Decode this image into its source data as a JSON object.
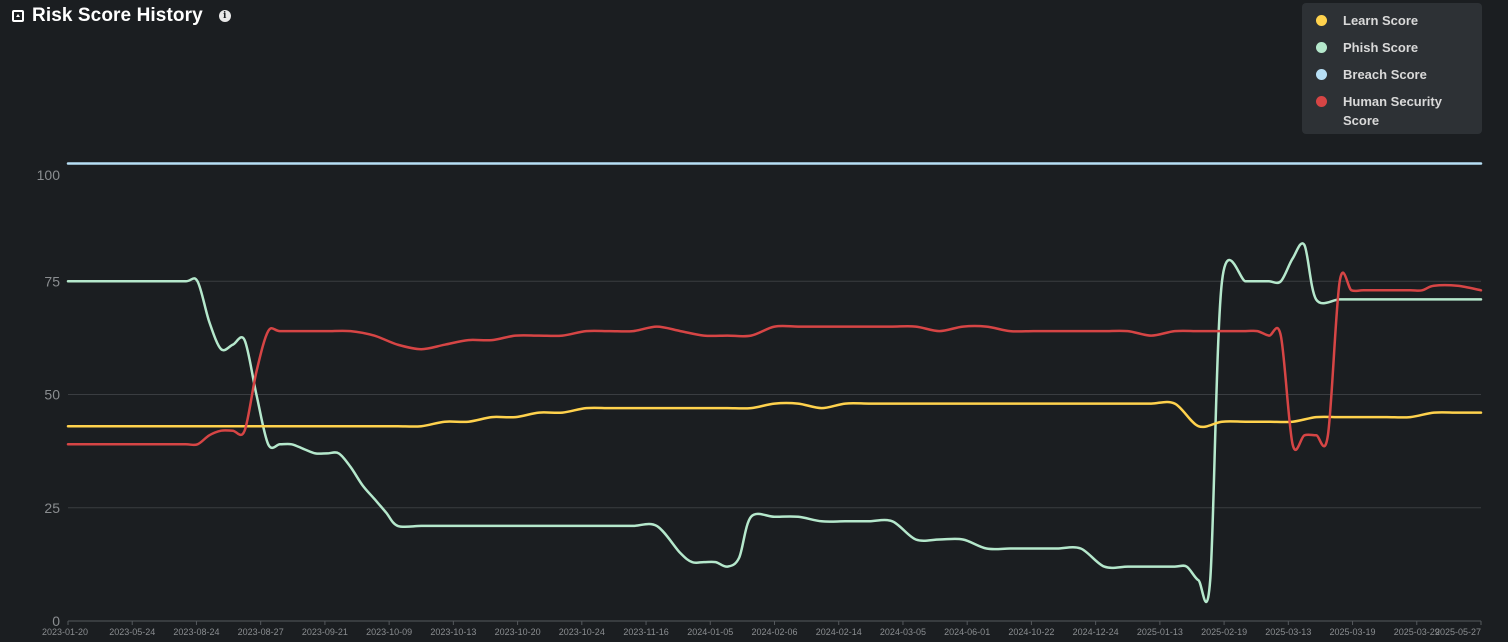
{
  "header": {
    "title": "Risk Score History"
  },
  "chart_data": {
    "type": "line",
    "title": "Risk Score History",
    "ylim": [
      0,
      100
    ],
    "yticks": [
      0,
      25,
      50,
      75,
      100
    ],
    "grid": true,
    "legend_position": "top-right",
    "categories": [
      "2023-01-20",
      "2023-05-24",
      "2023-08-24",
      "2023-08-27",
      "2023-09-21",
      "2023-10-09",
      "2023-10-13",
      "2023-10-20",
      "2023-10-24",
      "2023-11-16",
      "2024-01-05",
      "2024-02-06",
      "2024-02-14",
      "2024-03-05",
      "2024-06-01",
      "2024-10-22",
      "2024-12-24",
      "2025-01-13",
      "2025-02-19",
      "2025-03-13",
      "2025-03-19",
      "2025-03-29",
      "2025-05-27"
    ],
    "series": [
      {
        "name": "Learn Score",
        "color": "#ffd24d",
        "points": [
          [
            0,
            43
          ],
          [
            5,
            43
          ],
          [
            10,
            43
          ],
          [
            15,
            43
          ],
          [
            20,
            43
          ],
          [
            30,
            43
          ],
          [
            40,
            43
          ],
          [
            50,
            43
          ],
          [
            60,
            43
          ],
          [
            70,
            43
          ],
          [
            80,
            43
          ],
          [
            90,
            43
          ],
          [
            100,
            43
          ],
          [
            110,
            43
          ],
          [
            120,
            43
          ],
          [
            130,
            43
          ],
          [
            140,
            43
          ],
          [
            150,
            43
          ],
          [
            160,
            44
          ],
          [
            170,
            44
          ],
          [
            180,
            45
          ],
          [
            190,
            45
          ],
          [
            200,
            46
          ],
          [
            210,
            46
          ],
          [
            220,
            47
          ],
          [
            230,
            47
          ],
          [
            240,
            47
          ],
          [
            250,
            47
          ],
          [
            260,
            47
          ],
          [
            270,
            47
          ],
          [
            280,
            47
          ],
          [
            290,
            47
          ],
          [
            300,
            48
          ],
          [
            310,
            48
          ],
          [
            320,
            47
          ],
          [
            330,
            48
          ],
          [
            340,
            48
          ],
          [
            350,
            48
          ],
          [
            360,
            48
          ],
          [
            370,
            48
          ],
          [
            380,
            48
          ],
          [
            390,
            48
          ],
          [
            400,
            48
          ],
          [
            410,
            48
          ],
          [
            420,
            48
          ],
          [
            430,
            48
          ],
          [
            440,
            48
          ],
          [
            450,
            48
          ],
          [
            460,
            48
          ],
          [
            470,
            48
          ],
          [
            480,
            43
          ],
          [
            490,
            44
          ],
          [
            500,
            44
          ],
          [
            510,
            44
          ],
          [
            520,
            44
          ],
          [
            530,
            45
          ],
          [
            540,
            45
          ],
          [
            550,
            45
          ],
          [
            560,
            45
          ],
          [
            570,
            45
          ],
          [
            580,
            46
          ],
          [
            590,
            46
          ],
          [
            600,
            46
          ]
        ]
      },
      {
        "name": "Phish Score",
        "color": "#b5e8cc",
        "points": [
          [
            0,
            75
          ],
          [
            10,
            75
          ],
          [
            20,
            75
          ],
          [
            30,
            75
          ],
          [
            40,
            75
          ],
          [
            50,
            75
          ],
          [
            55,
            75
          ],
          [
            60,
            66
          ],
          [
            65,
            60
          ],
          [
            70,
            61
          ],
          [
            75,
            62
          ],
          [
            80,
            50
          ],
          [
            85,
            39
          ],
          [
            90,
            39
          ],
          [
            95,
            39
          ],
          [
            100,
            38
          ],
          [
            105,
            37
          ],
          [
            110,
            37
          ],
          [
            115,
            37
          ],
          [
            120,
            34
          ],
          [
            125,
            30
          ],
          [
            130,
            27
          ],
          [
            135,
            24
          ],
          [
            140,
            21
          ],
          [
            150,
            21
          ],
          [
            160,
            21
          ],
          [
            170,
            21
          ],
          [
            180,
            21
          ],
          [
            190,
            21
          ],
          [
            200,
            21
          ],
          [
            210,
            21
          ],
          [
            220,
            21
          ],
          [
            230,
            21
          ],
          [
            240,
            21
          ],
          [
            250,
            21
          ],
          [
            260,
            15
          ],
          [
            265,
            13
          ],
          [
            270,
            13
          ],
          [
            275,
            13
          ],
          [
            280,
            12
          ],
          [
            285,
            14
          ],
          [
            290,
            23
          ],
          [
            300,
            23
          ],
          [
            310,
            23
          ],
          [
            320,
            22
          ],
          [
            330,
            22
          ],
          [
            340,
            22
          ],
          [
            350,
            22
          ],
          [
            360,
            18
          ],
          [
            370,
            18
          ],
          [
            380,
            18
          ],
          [
            390,
            16
          ],
          [
            400,
            16
          ],
          [
            410,
            16
          ],
          [
            420,
            16
          ],
          [
            430,
            16
          ],
          [
            440,
            12
          ],
          [
            450,
            12
          ],
          [
            460,
            12
          ],
          [
            470,
            12
          ],
          [
            475,
            12
          ],
          [
            480,
            9
          ],
          [
            485,
            9
          ],
          [
            490,
            75
          ],
          [
            500,
            75
          ],
          [
            505,
            75
          ],
          [
            510,
            75
          ],
          [
            515,
            75
          ],
          [
            520,
            80
          ],
          [
            525,
            83
          ],
          [
            530,
            71
          ],
          [
            540,
            71
          ],
          [
            550,
            71
          ],
          [
            560,
            71
          ],
          [
            570,
            71
          ],
          [
            580,
            71
          ],
          [
            590,
            71
          ],
          [
            600,
            71
          ]
        ]
      },
      {
        "name": "Breach Score",
        "color": "#b7dff5",
        "points": [
          [
            0,
            101
          ],
          [
            100,
            101
          ],
          [
            200,
            101
          ],
          [
            300,
            101
          ],
          [
            400,
            101
          ],
          [
            500,
            101
          ],
          [
            600,
            101
          ]
        ]
      },
      {
        "name": "Human Security Score",
        "color": "#d64545",
        "points": [
          [
            0,
            39
          ],
          [
            10,
            39
          ],
          [
            20,
            39
          ],
          [
            30,
            39
          ],
          [
            40,
            39
          ],
          [
            50,
            39
          ],
          [
            55,
            39
          ],
          [
            60,
            41
          ],
          [
            65,
            42
          ],
          [
            70,
            42
          ],
          [
            75,
            42
          ],
          [
            80,
            55
          ],
          [
            85,
            64
          ],
          [
            90,
            64
          ],
          [
            100,
            64
          ],
          [
            110,
            64
          ],
          [
            120,
            64
          ],
          [
            130,
            63
          ],
          [
            140,
            61
          ],
          [
            150,
            60
          ],
          [
            160,
            61
          ],
          [
            170,
            62
          ],
          [
            180,
            62
          ],
          [
            190,
            63
          ],
          [
            200,
            63
          ],
          [
            210,
            63
          ],
          [
            220,
            64
          ],
          [
            230,
            64
          ],
          [
            240,
            64
          ],
          [
            250,
            65
          ],
          [
            260,
            64
          ],
          [
            270,
            63
          ],
          [
            280,
            63
          ],
          [
            290,
            63
          ],
          [
            300,
            65
          ],
          [
            310,
            65
          ],
          [
            320,
            65
          ],
          [
            330,
            65
          ],
          [
            340,
            65
          ],
          [
            350,
            65
          ],
          [
            360,
            65
          ],
          [
            370,
            64
          ],
          [
            380,
            65
          ],
          [
            390,
            65
          ],
          [
            400,
            64
          ],
          [
            410,
            64
          ],
          [
            420,
            64
          ],
          [
            430,
            64
          ],
          [
            440,
            64
          ],
          [
            450,
            64
          ],
          [
            460,
            63
          ],
          [
            470,
            64
          ],
          [
            480,
            64
          ],
          [
            490,
            64
          ],
          [
            500,
            64
          ],
          [
            505,
            64
          ],
          [
            510,
            63
          ],
          [
            515,
            63
          ],
          [
            520,
            39
          ],
          [
            525,
            41
          ],
          [
            530,
            41
          ],
          [
            535,
            41
          ],
          [
            540,
            75
          ],
          [
            545,
            73
          ],
          [
            550,
            73
          ],
          [
            560,
            73
          ],
          [
            570,
            73
          ],
          [
            575,
            73
          ],
          [
            580,
            74
          ],
          [
            590,
            74
          ],
          [
            600,
            73
          ]
        ]
      }
    ]
  }
}
